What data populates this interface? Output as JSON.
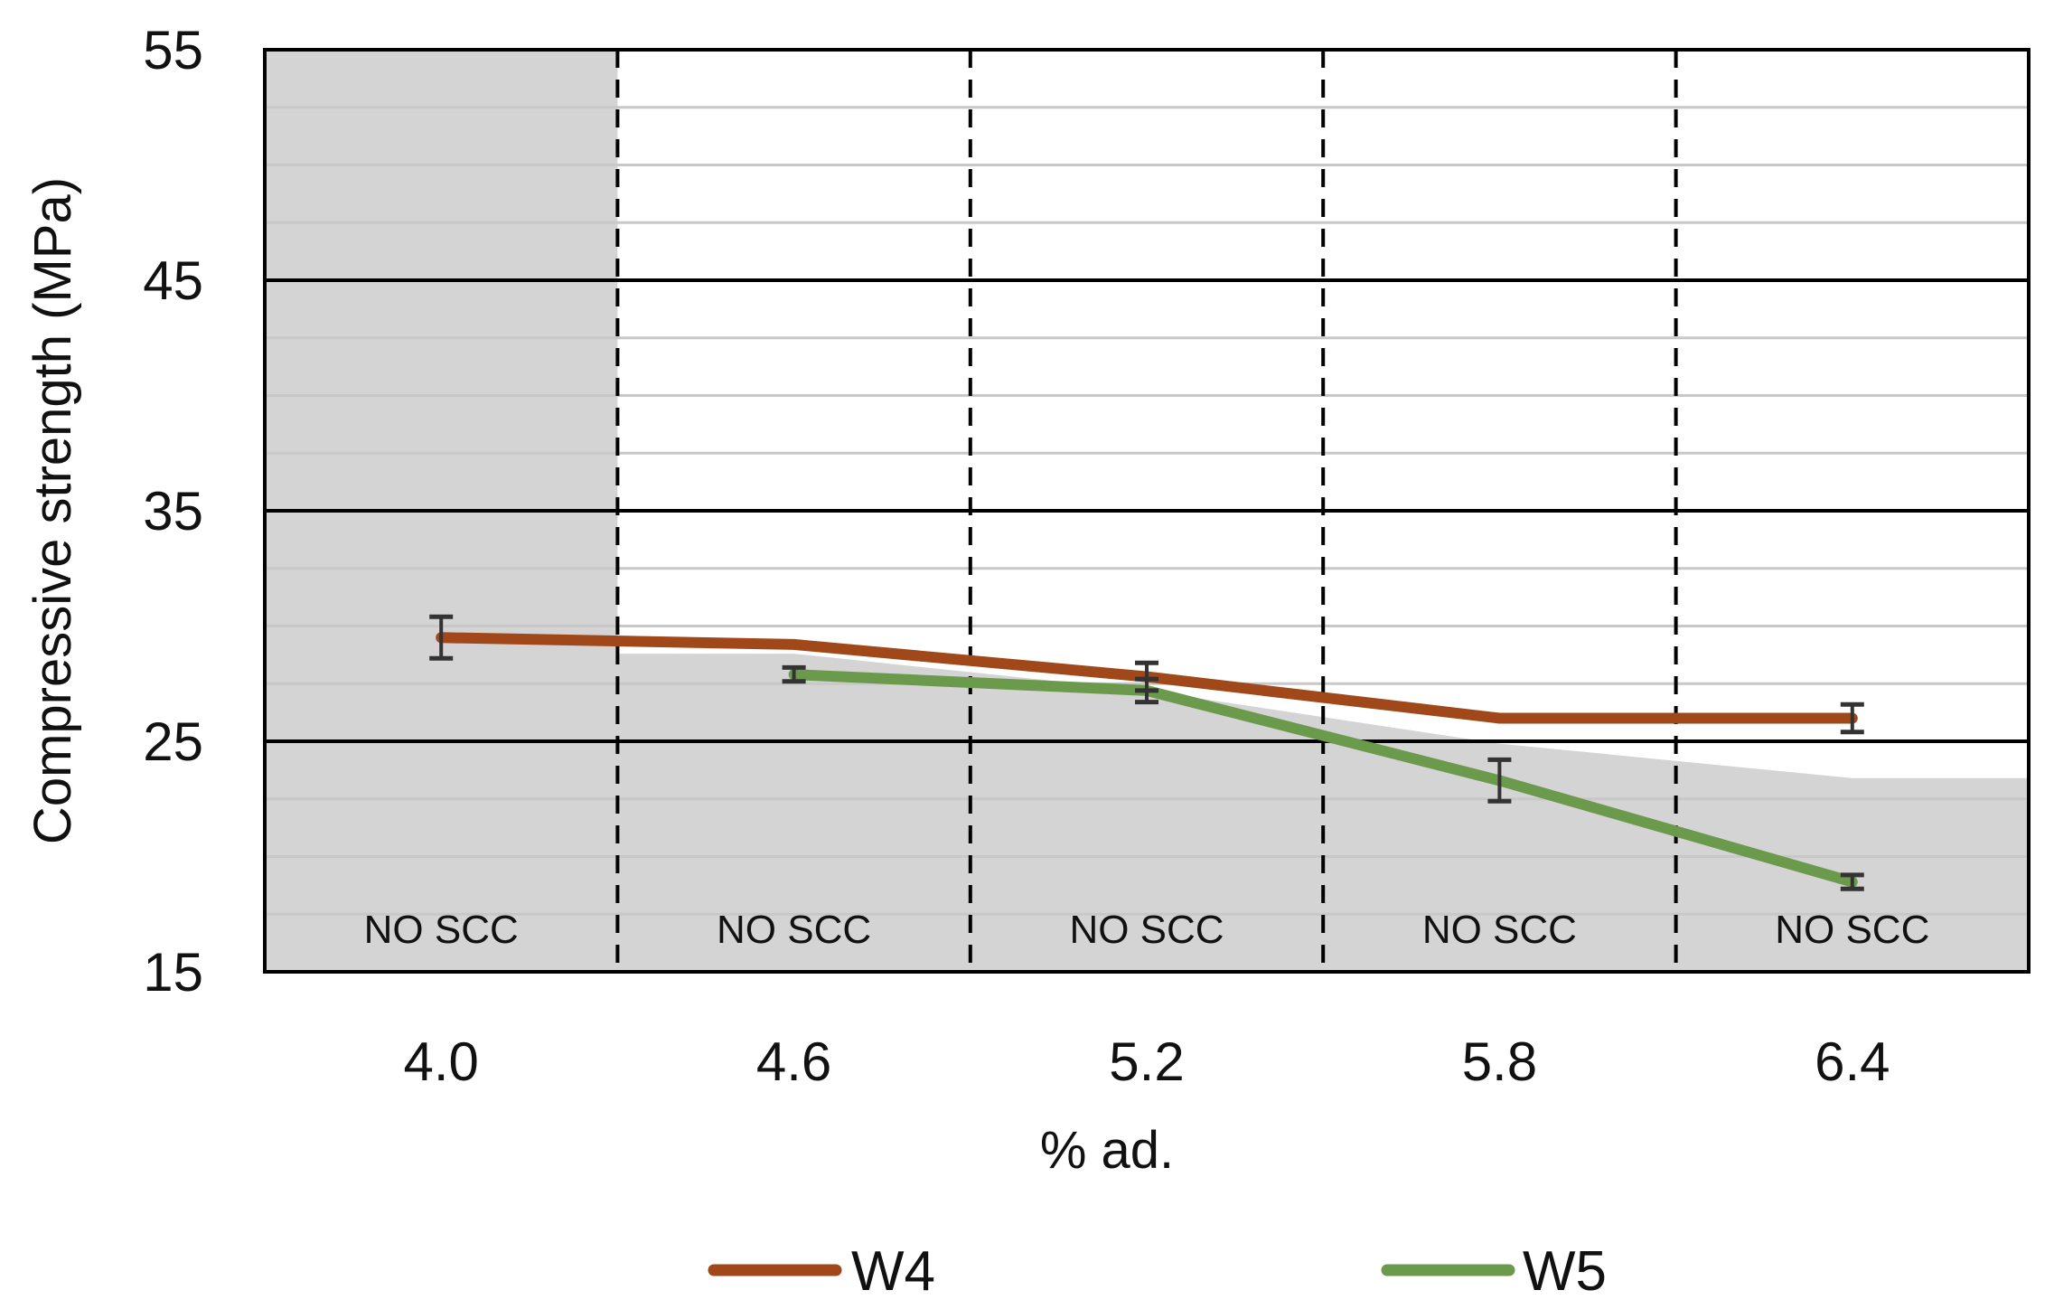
{
  "chart_data": {
    "type": "line",
    "title": "",
    "xlabel": "% ad.",
    "ylabel": "Compressive strength (MPa)",
    "categories": [
      "4.0",
      "4.6",
      "5.2",
      "5.8",
      "6.4"
    ],
    "ylim": [
      15,
      55
    ],
    "yticks": [
      "15",
      "25",
      "35",
      "45",
      "55"
    ],
    "major_grid_step": 10,
    "minor_grid_step": 2.5,
    "region_label": "NO SCC",
    "region_labels": [
      "NO SCC",
      "NO SCC",
      "NO SCC",
      "NO SCC",
      "NO SCC"
    ],
    "shaded_region_upper": [
      55,
      28.8,
      27.2,
      24.9,
      23.4
    ],
    "series": [
      {
        "name": "W4",
        "color": "#a0481a",
        "values": [
          29.5,
          29.2,
          27.8,
          26.0,
          26.0
        ],
        "error": [
          0.9,
          0.0,
          0.6,
          0.0,
          0.6
        ]
      },
      {
        "name": "W5",
        "color": "#6b9a4c",
        "values": [
          null,
          27.9,
          27.2,
          23.3,
          18.9
        ],
        "error": [
          null,
          0.3,
          0.5,
          0.9,
          0.3
        ]
      }
    ],
    "legend_position": "bottom",
    "grid": true,
    "shaded_color": "#d4d4d4"
  }
}
